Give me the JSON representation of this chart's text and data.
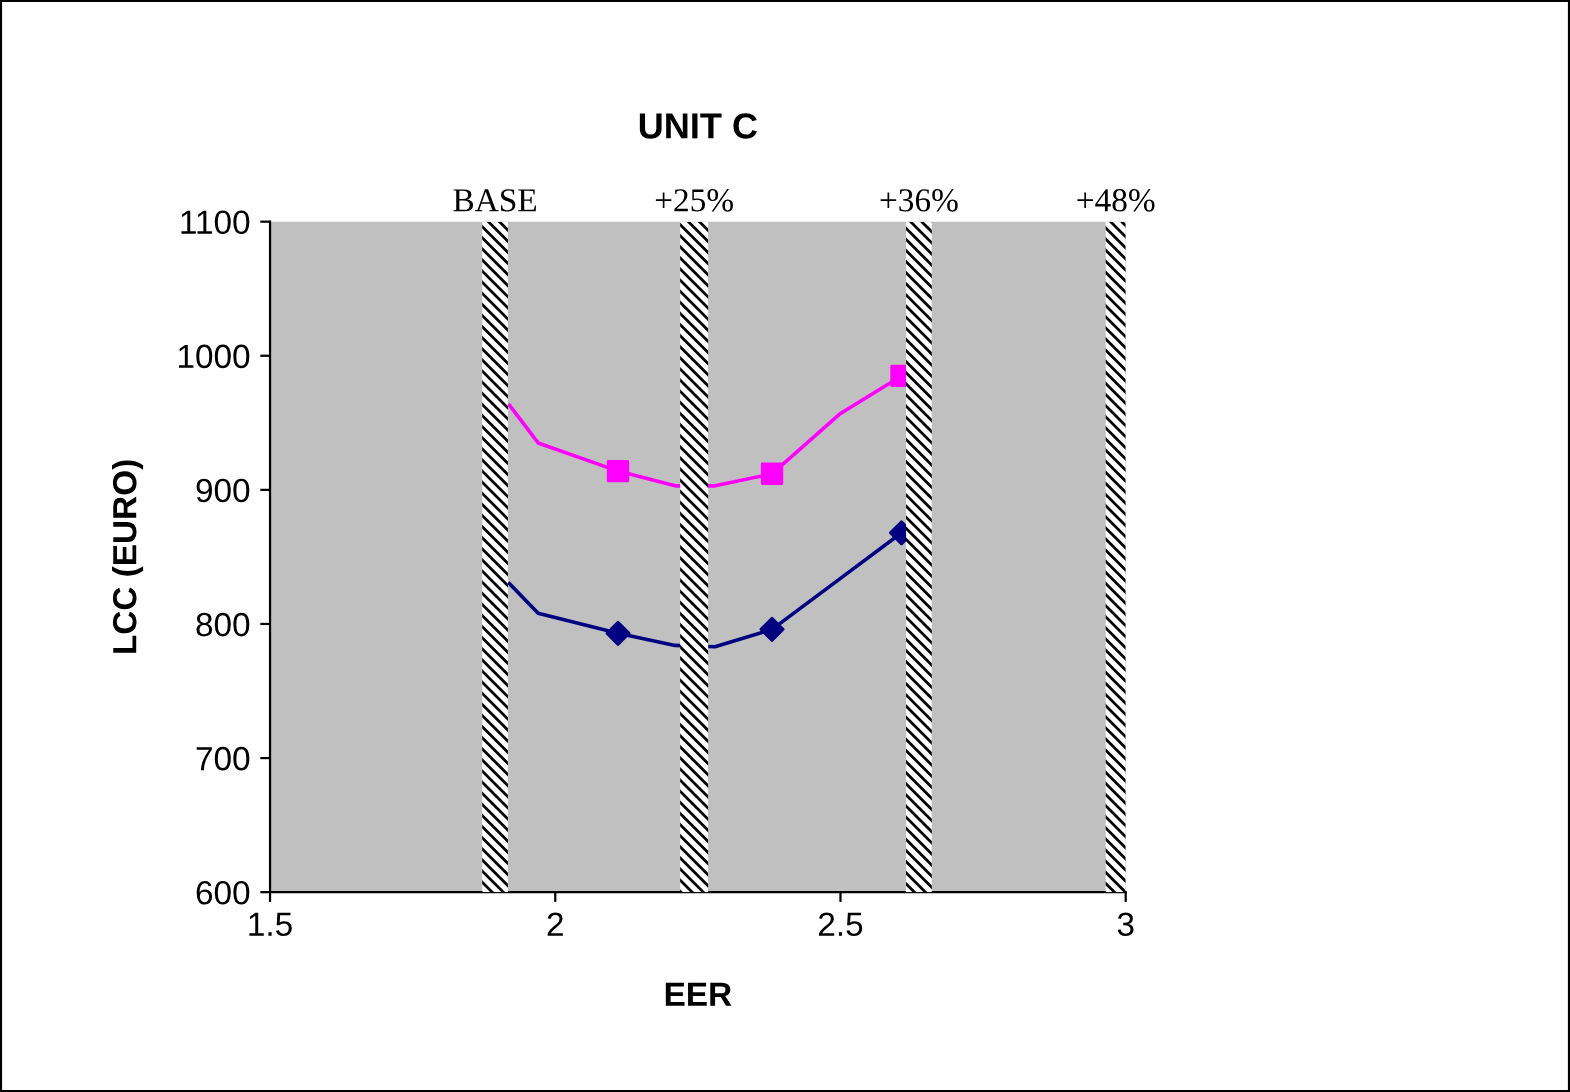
{
  "chart_data": {
    "type": "line",
    "title": "UNIT C",
    "xlabel": "EER",
    "ylabel": "LCC (EURO)",
    "xlim": [
      1.5,
      3
    ],
    "xticks": [
      1.5,
      2,
      2.5,
      3
    ],
    "ylim": [
      600,
      1100
    ],
    "yticks": [
      600,
      700,
      800,
      900,
      1000,
      1100
    ],
    "grid": false,
    "legend": false,
    "series": [
      {
        "color": "#ff00ff",
        "marker": "none",
        "x": [
          1.92,
          1.97,
          2.11,
          2.21,
          2.28,
          2.38,
          2.5,
          2.607
        ],
        "values": [
          963,
          935,
          914,
          903,
          903,
          912,
          957,
          985
        ]
      },
      {
        "color": "#000080",
        "marker": "none",
        "x": [
          1.92,
          1.97,
          2.11,
          2.21,
          2.28,
          2.38,
          2.5,
          2.607
        ],
        "values": [
          830,
          808,
          793,
          784,
          783,
          796,
          834,
          868
        ]
      },
      {
        "type": "scatter",
        "color": "#ff00ff",
        "marker": "square",
        "x": [
          2.11,
          2.38,
          2.607
        ],
        "values": [
          914,
          912,
          985
        ]
      },
      {
        "type": "scatter",
        "color": "#000080",
        "marker": "diamond",
        "x": [
          2.11,
          2.38,
          2.607
        ],
        "values": [
          793,
          796,
          868
        ]
      }
    ],
    "bands": [
      {
        "axis": "x",
        "from": 1.872,
        "to": 1.917,
        "label": "BASE"
      },
      {
        "axis": "x",
        "from": 2.219,
        "to": 2.268,
        "label": "+25%"
      },
      {
        "axis": "x",
        "from": 2.615,
        "to": 2.66,
        "label": "+36%"
      },
      {
        "axis": "x",
        "from": 2.965,
        "to": 3.0,
        "label": "+48%"
      }
    ]
  }
}
